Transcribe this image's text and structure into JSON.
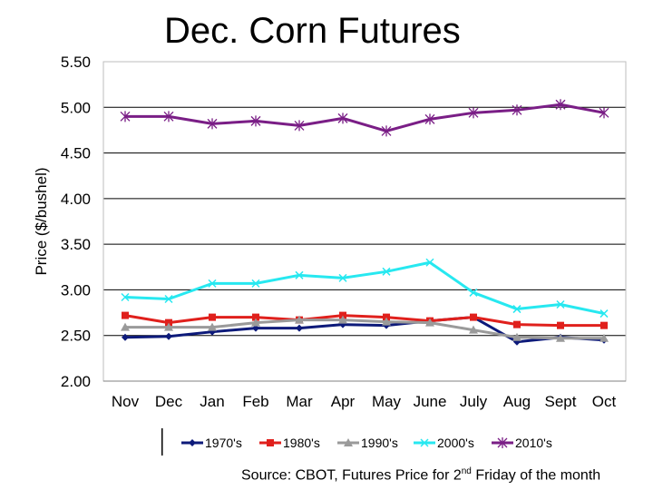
{
  "chart_data": {
    "type": "line",
    "title": "Dec. Corn Futures",
    "ylabel": "Price ($/bushel)",
    "xlabel": "",
    "ylim": [
      2.0,
      5.5
    ],
    "yticks": [
      "2.00",
      "2.50",
      "3.00",
      "3.50",
      "4.00",
      "4.50",
      "5.00",
      "5.50"
    ],
    "grid": "horizontal",
    "legend_position": "bottom",
    "categories": [
      "Nov",
      "Dec",
      "Jan",
      "Feb",
      "Mar",
      "Apr",
      "May",
      "June",
      "July",
      "Aug",
      "Sept",
      "Oct"
    ],
    "series": [
      {
        "name": "1970's",
        "color": "#0d1a7a",
        "marker": "diamond",
        "values": [
          2.48,
          2.49,
          2.54,
          2.58,
          2.58,
          2.62,
          2.61,
          2.66,
          2.7,
          2.43,
          2.48,
          2.45
        ]
      },
      {
        "name": "1980's",
        "color": "#e0201c",
        "marker": "square",
        "values": [
          2.72,
          2.64,
          2.7,
          2.7,
          2.67,
          2.72,
          2.7,
          2.66,
          2.7,
          2.62,
          2.61,
          2.61
        ]
      },
      {
        "name": "1990's",
        "color": "#9a9a9a",
        "marker": "triangle",
        "values": [
          2.59,
          2.59,
          2.59,
          2.64,
          2.67,
          2.67,
          2.65,
          2.64,
          2.56,
          2.48,
          2.47,
          2.47
        ]
      },
      {
        "name": "2000's",
        "color": "#27e8f0",
        "marker": "x",
        "values": [
          2.92,
          2.9,
          3.07,
          3.07,
          3.16,
          3.13,
          3.2,
          3.3,
          2.97,
          2.79,
          2.84,
          2.74
        ]
      },
      {
        "name": "2010's",
        "color": "#7a1e86",
        "marker": "star",
        "values": [
          4.9,
          4.9,
          4.82,
          4.85,
          4.8,
          4.88,
          4.74,
          4.87,
          4.94,
          4.97,
          5.03,
          4.94
        ]
      }
    ]
  },
  "source_note": {
    "prefix": "Source: CBOT, Futures Price for 2",
    "sup": "nd",
    "suffix": " Friday of the month"
  }
}
